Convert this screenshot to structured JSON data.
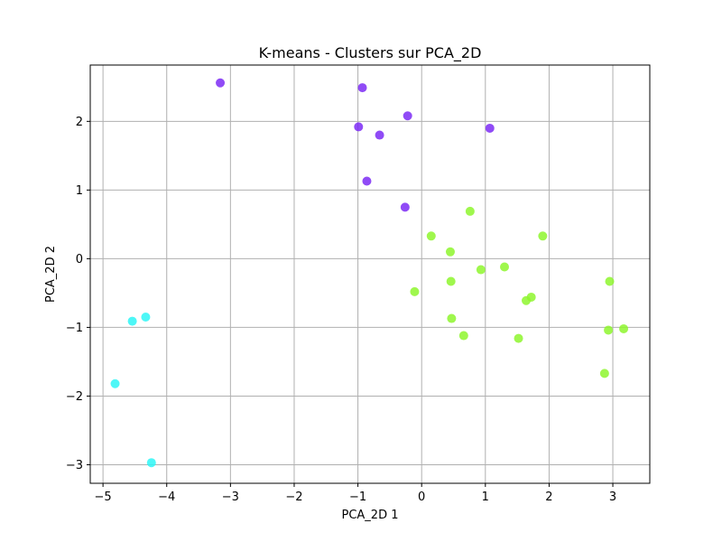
{
  "chart_data": {
    "type": "scatter",
    "title": "K-means - Clusters sur PCA_2D",
    "xlabel": "PCA_2D 1",
    "ylabel": "PCA_2D 2",
    "xlim": [
      -5.2,
      3.58
    ],
    "ylim": [
      -3.27,
      2.82
    ],
    "xticks": [
      -5,
      -4,
      -3,
      -2,
      -1,
      0,
      1,
      2,
      3
    ],
    "yticks": [
      -3,
      -2,
      -1,
      0,
      1,
      2
    ],
    "grid": true,
    "series": [
      {
        "color": "#7c2bf4",
        "points": [
          {
            "x": -3.16,
            "y": 2.56
          },
          {
            "x": -0.93,
            "y": 2.49
          },
          {
            "x": -0.99,
            "y": 1.92
          },
          {
            "x": -0.66,
            "y": 1.8
          },
          {
            "x": -0.22,
            "y": 2.08
          },
          {
            "x": 1.07,
            "y": 1.9
          },
          {
            "x": -0.86,
            "y": 1.13
          },
          {
            "x": -0.26,
            "y": 0.75
          }
        ]
      },
      {
        "color": "#2ef6f6",
        "points": [
          {
            "x": -4.54,
            "y": -0.91
          },
          {
            "x": -4.33,
            "y": -0.85
          },
          {
            "x": -4.81,
            "y": -1.82
          },
          {
            "x": -4.24,
            "y": -2.97
          }
        ]
      },
      {
        "color": "#8ef62e",
        "points": [
          {
            "x": 0.15,
            "y": 0.33
          },
          {
            "x": 0.76,
            "y": 0.69
          },
          {
            "x": 1.9,
            "y": 0.33
          },
          {
            "x": 0.45,
            "y": 0.1
          },
          {
            "x": 0.93,
            "y": -0.16
          },
          {
            "x": 1.3,
            "y": -0.12
          },
          {
            "x": -0.11,
            "y": -0.48
          },
          {
            "x": 0.46,
            "y": -0.33
          },
          {
            "x": 1.64,
            "y": -0.61
          },
          {
            "x": 1.72,
            "y": -0.56
          },
          {
            "x": 2.95,
            "y": -0.33
          },
          {
            "x": 0.47,
            "y": -0.87
          },
          {
            "x": 0.66,
            "y": -1.12
          },
          {
            "x": 1.52,
            "y": -1.16
          },
          {
            "x": 2.93,
            "y": -1.04
          },
          {
            "x": 3.17,
            "y": -1.02
          },
          {
            "x": 2.87,
            "y": -1.67
          }
        ]
      }
    ]
  }
}
